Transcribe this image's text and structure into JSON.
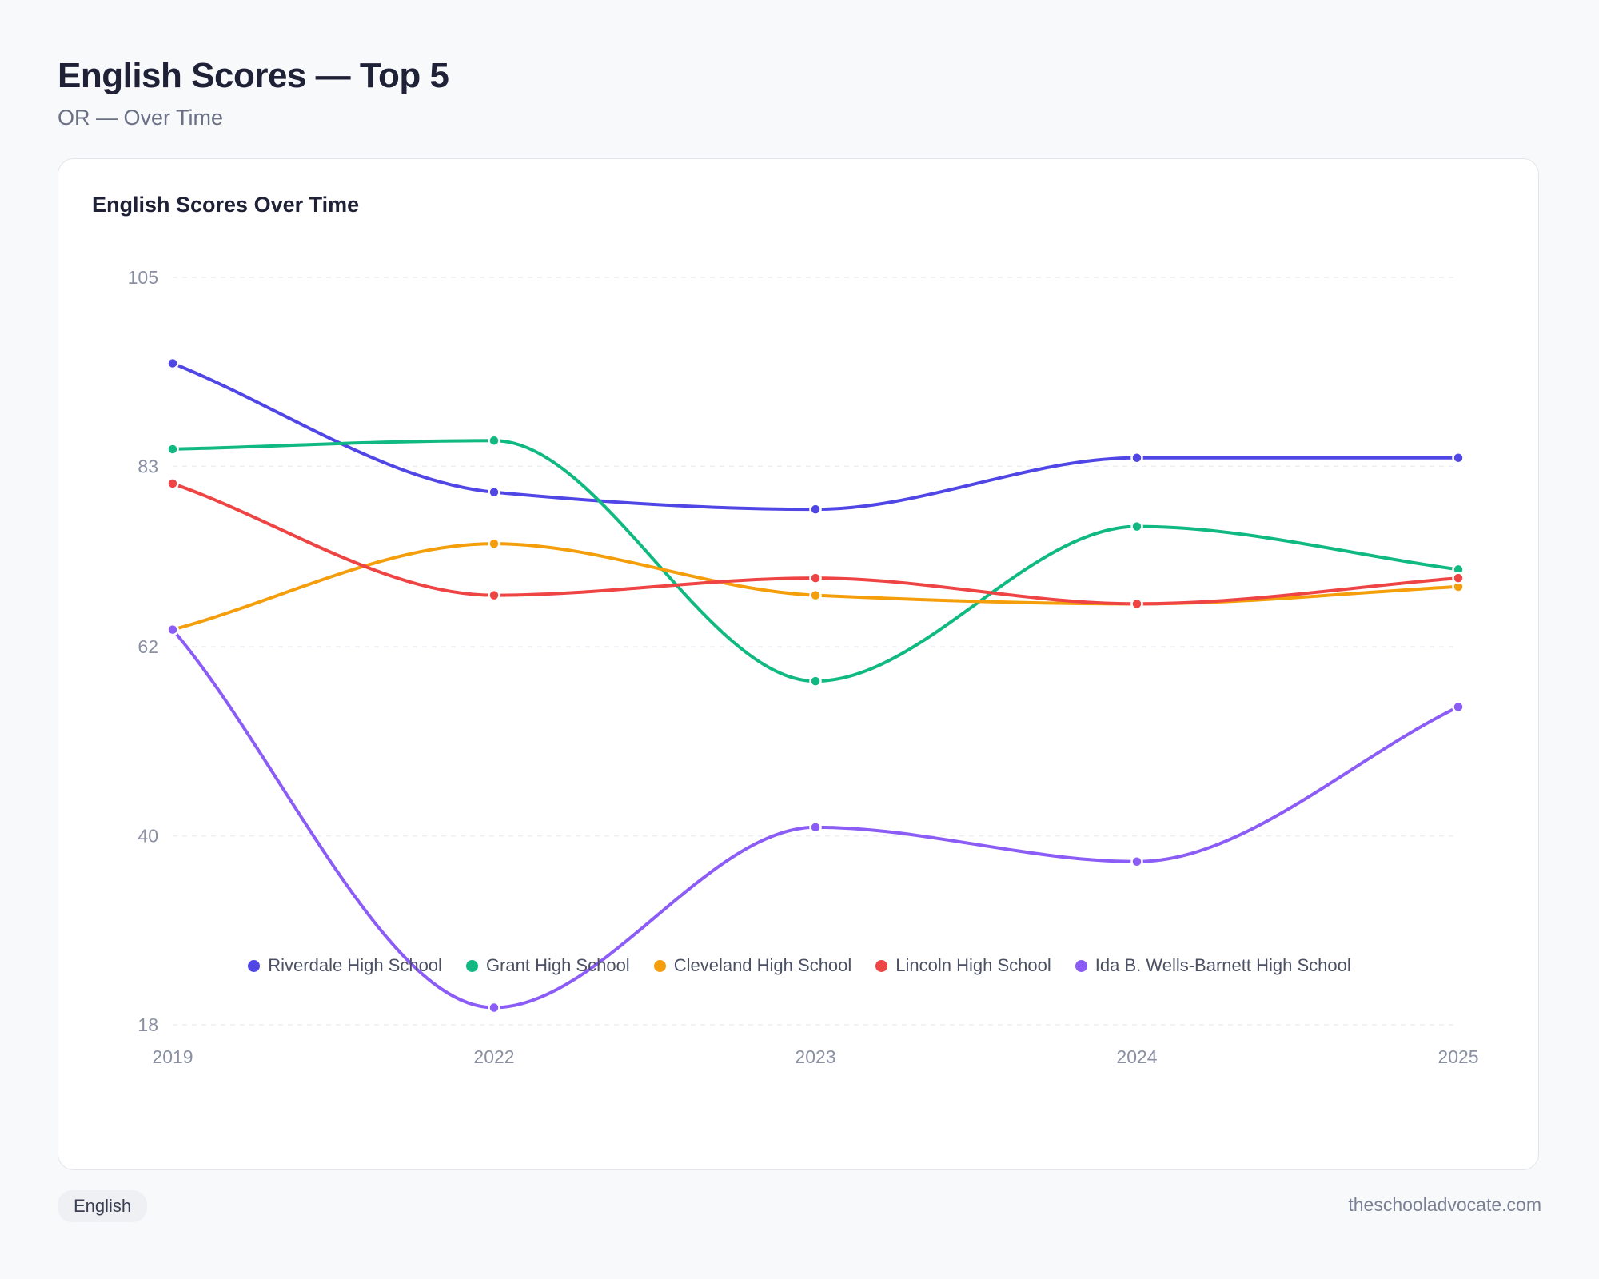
{
  "header": {
    "title": "English Scores — Top 5",
    "subtitle": "OR — Over Time"
  },
  "card": {
    "title": "English Scores Over Time"
  },
  "footer": {
    "tag": "English",
    "site": "theschooladvocate.com"
  },
  "chart_data": {
    "type": "line",
    "title": "English Scores Over Time",
    "x": [
      "2019",
      "2022",
      "2023",
      "2024",
      "2025"
    ],
    "ylim": [
      18,
      105
    ],
    "yticks": [
      105,
      83,
      62,
      40,
      18
    ],
    "grid": true,
    "legend_position": "bottom",
    "series": [
      {
        "name": "Riverdale High School",
        "color": "#4f46e5",
        "values": [
          95,
          80,
          78,
          84,
          84
        ]
      },
      {
        "name": "Grant High School",
        "color": "#10b981",
        "values": [
          85,
          86,
          58,
          76,
          71
        ]
      },
      {
        "name": "Cleveland High School",
        "color": "#f59e0b",
        "values": [
          64,
          74,
          68,
          67,
          69
        ]
      },
      {
        "name": "Lincoln High School",
        "color": "#ef4444",
        "values": [
          81,
          68,
          70,
          67,
          70
        ]
      },
      {
        "name": "Ida B. Wells-Barnett High School",
        "color": "#8b5cf6",
        "values": [
          64,
          20,
          41,
          37,
          55
        ]
      }
    ]
  }
}
